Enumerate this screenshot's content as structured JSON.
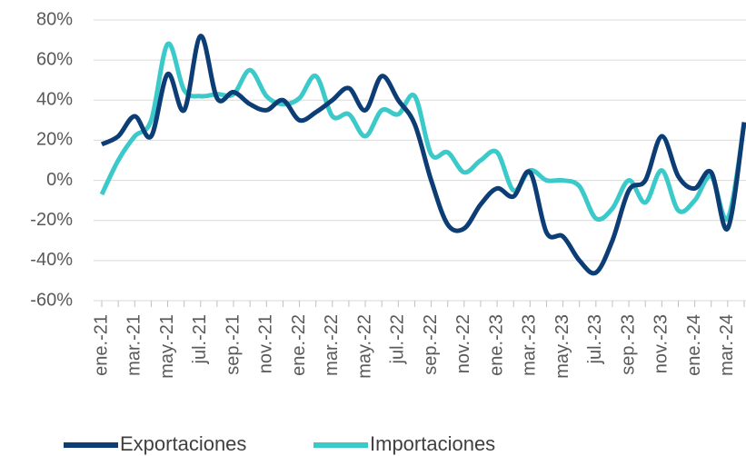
{
  "chart_data": {
    "type": "line",
    "categories": [
      "ene.-21",
      null,
      "mar.-21",
      null,
      "may.-21",
      null,
      "jul.-21",
      null,
      "sep.-21",
      null,
      "nov.-21",
      null,
      "ene.-22",
      null,
      "mar.-22",
      null,
      "may.-22",
      null,
      "jul.-22",
      null,
      "sep.-22",
      null,
      "nov.-22",
      null,
      "ene.-23",
      null,
      "mar.-23",
      null,
      "may.-23",
      null,
      "jul.-23",
      null,
      "sep.-23",
      null,
      "nov.-23",
      null,
      "ene.-24",
      null,
      "mar.-24",
      null
    ],
    "series": [
      {
        "name": "Exportaciones",
        "color": "#0d3d75",
        "values": [
          18,
          22,
          32,
          22,
          53,
          35,
          72,
          41,
          44,
          38,
          35,
          40,
          30,
          34,
          40,
          46,
          35,
          52,
          40,
          28,
          0,
          -22,
          -24,
          -12,
          -4,
          -8,
          4,
          -26,
          -28,
          -40,
          -46,
          -30,
          -5,
          0,
          22,
          2,
          -4,
          4,
          -24,
          29
        ]
      },
      {
        "name": "Importaciones",
        "color": "#3cc9c9",
        "values": [
          -7,
          10,
          22,
          30,
          68,
          45,
          42,
          43,
          43,
          55,
          42,
          38,
          41,
          52,
          32,
          33,
          22,
          35,
          33,
          42,
          13,
          14,
          4,
          10,
          14,
          -5,
          5,
          0,
          0,
          -3,
          -19,
          -14,
          0,
          -11,
          5,
          -15,
          -10,
          2,
          -19,
          28
        ]
      }
    ],
    "ylim": [
      -60,
      80
    ],
    "yticks": [
      {
        "value": -60,
        "label": "-60%"
      },
      {
        "value": -40,
        "label": "-40%"
      },
      {
        "value": -20,
        "label": "-20%"
      },
      {
        "value": 0,
        "label": "0%"
      },
      {
        "value": 20,
        "label": "20%"
      },
      {
        "value": 40,
        "label": "40%"
      },
      {
        "value": 60,
        "label": "60%"
      },
      {
        "value": 80,
        "label": "80%"
      }
    ],
    "grid": true,
    "legend": "bottom"
  }
}
